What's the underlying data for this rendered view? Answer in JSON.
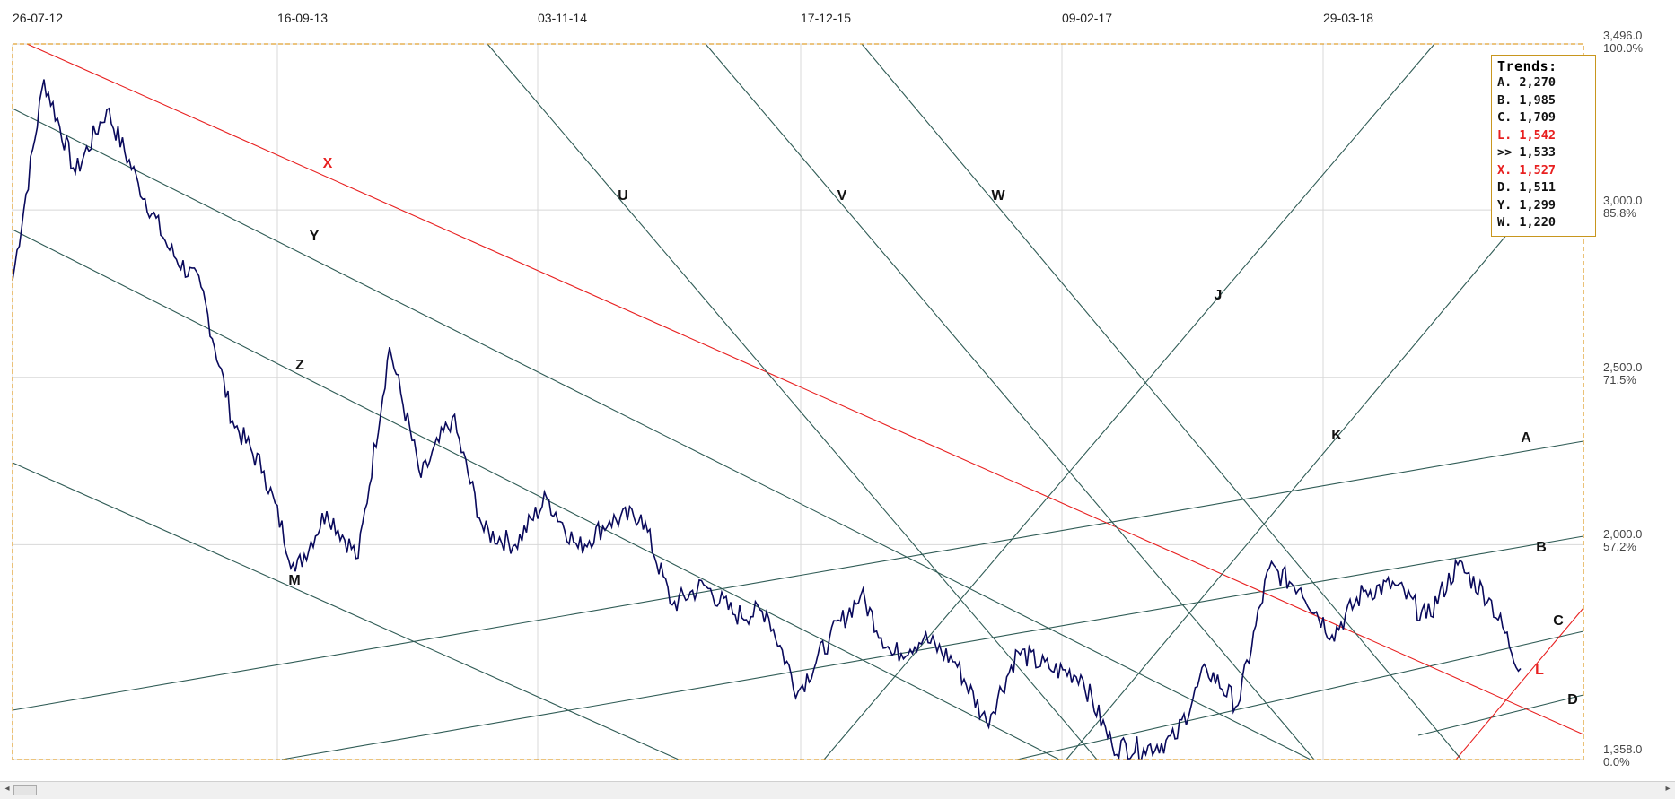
{
  "chart_data": {
    "type": "line",
    "x_tick_labels": [
      "26-07-12",
      "16-09-13",
      "03-11-14",
      "17-12-15",
      "09-02-17",
      "29-03-18"
    ],
    "y_ticks": [
      {
        "value": 3496.0,
        "label": "3,496.0",
        "pct": "100.0%"
      },
      {
        "value": 3000.0,
        "label": "3,000.0",
        "pct": "85.8%"
      },
      {
        "value": 2500.0,
        "label": "2,500.0",
        "pct": "71.5%"
      },
      {
        "value": 2000.0,
        "label": "2,000.0",
        "pct": "57.2%"
      },
      {
        "value": 1358.0,
        "label": "1,358.0",
        "pct": "0.0%"
      }
    ],
    "ylim": [
      1358.0,
      3496.0
    ],
    "grid": true,
    "colors": {
      "price": "#0a0a5c",
      "trend": "#2f5b55",
      "highlight": "#e82020",
      "frame": "#e0a030",
      "grid": "#d8d8d8"
    },
    "price_series": {
      "name": "",
      "x": [
        0,
        0.02,
        0.04,
        0.06,
        0.08,
        0.1,
        0.12,
        0.14,
        0.16,
        0.18,
        0.2,
        0.22,
        0.24,
        0.26,
        0.28,
        0.3,
        0.32,
        0.34,
        0.36,
        0.38,
        0.4,
        0.42,
        0.44,
        0.46,
        0.48,
        0.5,
        0.52,
        0.54,
        0.56,
        0.58,
        0.6,
        0.62,
        0.64,
        0.66,
        0.68,
        0.7,
        0.72,
        0.74,
        0.76,
        0.78,
        0.8,
        0.82,
        0.84,
        0.86,
        0.88,
        0.9,
        0.92,
        0.94,
        0.96
      ],
      "y": [
        2790,
        3390,
        3110,
        3300,
        3080,
        2880,
        2770,
        2370,
        2220,
        1920,
        2100,
        1960,
        2590,
        2200,
        2380,
        2040,
        2000,
        2140,
        1990,
        2070,
        2090,
        1820,
        1880,
        1790,
        1800,
        1560,
        1720,
        1850,
        1670,
        1720,
        1650,
        1470,
        1680,
        1630,
        1610,
        1400,
        1390,
        1420,
        1630,
        1520,
        1930,
        1870,
        1730,
        1860,
        1880,
        1780,
        1940,
        1840,
        1630
      ],
      "comment_note_removed": true
    },
    "trend_lines": [
      {
        "label": "A",
        "color": "trend"
      },
      {
        "label": "B",
        "color": "trend"
      },
      {
        "label": "C",
        "color": "trend"
      },
      {
        "label": "D",
        "color": "trend"
      },
      {
        "label": "L",
        "color": "highlight"
      },
      {
        "label": "X",
        "color": "highlight"
      },
      {
        "label": "Y",
        "color": "trend"
      },
      {
        "label": "Z",
        "color": "trend"
      },
      {
        "label": "M",
        "color": "trend"
      },
      {
        "label": "U",
        "color": "trend"
      },
      {
        "label": "V",
        "color": "trend"
      },
      {
        "label": "W",
        "color": "trend"
      },
      {
        "label": "J",
        "color": "trend"
      },
      {
        "label": "K",
        "color": "trend"
      }
    ],
    "legend": {
      "title": "Trends:",
      "placement": "top-right",
      "items": [
        {
          "label": "A.",
          "value": "2,270",
          "highlight": false
        },
        {
          "label": "B.",
          "value": "1,985",
          "highlight": false
        },
        {
          "label": "C.",
          "value": "1,709",
          "highlight": false
        },
        {
          "label": "L.",
          "value": "1,542",
          "highlight": true
        },
        {
          "label": ">>",
          "value": "1,533",
          "highlight": false
        },
        {
          "label": "X.",
          "value": "1,527",
          "highlight": true
        },
        {
          "label": "D.",
          "value": "1,511",
          "highlight": false
        },
        {
          "label": "Y.",
          "value": "1,299",
          "highlight": false
        },
        {
          "label": "W.",
          "value": "1,220",
          "highlight": false
        }
      ]
    }
  },
  "scrollbar": {
    "left_arrow": "◂",
    "right_arrow": "▸"
  }
}
